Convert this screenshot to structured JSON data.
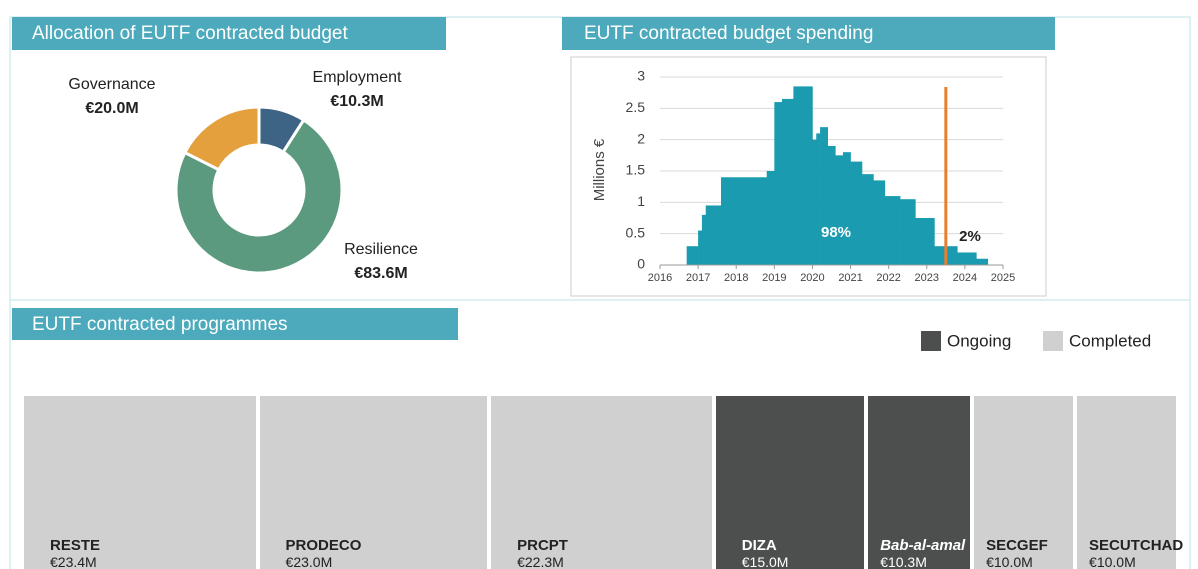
{
  "chart_data": [
    {
      "type": "pie",
      "title": "Allocation of EUTF contracted budget",
      "categories": [
        "Employment",
        "Resilience",
        "Governance"
      ],
      "values": [
        10.3,
        83.6,
        20.0
      ],
      "value_labels": [
        "€10.3M",
        "€83.6M",
        "€20.0M"
      ],
      "colors": [
        "#3e6485",
        "#5b9a7e",
        "#e3a03d"
      ],
      "donut": true
    },
    {
      "type": "histogram",
      "title": "EUTF contracted budget spending",
      "ylabel": "Millions €",
      "bins": [
        2016.7,
        2017.0,
        2017.1,
        2017.2,
        2017.6,
        2018.8,
        2019.0,
        2019.2,
        2019.5,
        2020.0,
        2020.1,
        2020.2,
        2020.4,
        2020.6,
        2020.8,
        2021.0,
        2021.3,
        2021.6,
        2021.9,
        2022.3,
        2022.7,
        2023.2,
        2023.8,
        2024.3,
        2024.6
      ],
      "values": [
        0.3,
        0.55,
        0.8,
        0.95,
        1.4,
        1.5,
        2.6,
        2.65,
        2.85,
        2.0,
        2.1,
        2.2,
        1.9,
        1.75,
        1.8,
        1.65,
        1.45,
        1.35,
        1.1,
        1.05,
        0.75,
        0.3,
        0.2,
        0.1
      ],
      "color": "#1a9bb0",
      "xlim": [
        2016,
        2025
      ],
      "xticks": [
        2016,
        2017,
        2018,
        2019,
        2020,
        2021,
        2022,
        2023,
        2024,
        2025
      ],
      "ylim": [
        0,
        3
      ],
      "yticks": [
        0,
        0.5,
        1,
        1.5,
        2,
        2.5,
        3
      ],
      "grid": true,
      "marker_x": 2023.5,
      "marker_color": "#e87f2f",
      "annotations": [
        "98%",
        "2%"
      ]
    },
    {
      "type": "treemap",
      "title": "EUTF contracted programmes",
      "categories": [
        "RESTE",
        "PRODECO",
        "PRCPT",
        "DIZA",
        "Bab-al-amal",
        "SECGEF",
        "SECUTCHAD"
      ],
      "values": [
        23.4,
        23.0,
        22.3,
        15.0,
        10.3,
        10.0,
        10.0
      ],
      "value_labels": [
        "€23.4M",
        "€23.0M",
        "€22.3M",
        "€15.0M",
        "€10.3M",
        "€10.0M",
        "€10.0M"
      ],
      "status": [
        1,
        1,
        1,
        0,
        0,
        1,
        1
      ],
      "italic": [
        false,
        false,
        false,
        false,
        true,
        false,
        false
      ],
      "legend": [
        {
          "name": "Ongoing",
          "color": "#4d4f4f"
        },
        {
          "name": "Completed",
          "color": "#d0d0d0"
        }
      ]
    }
  ]
}
